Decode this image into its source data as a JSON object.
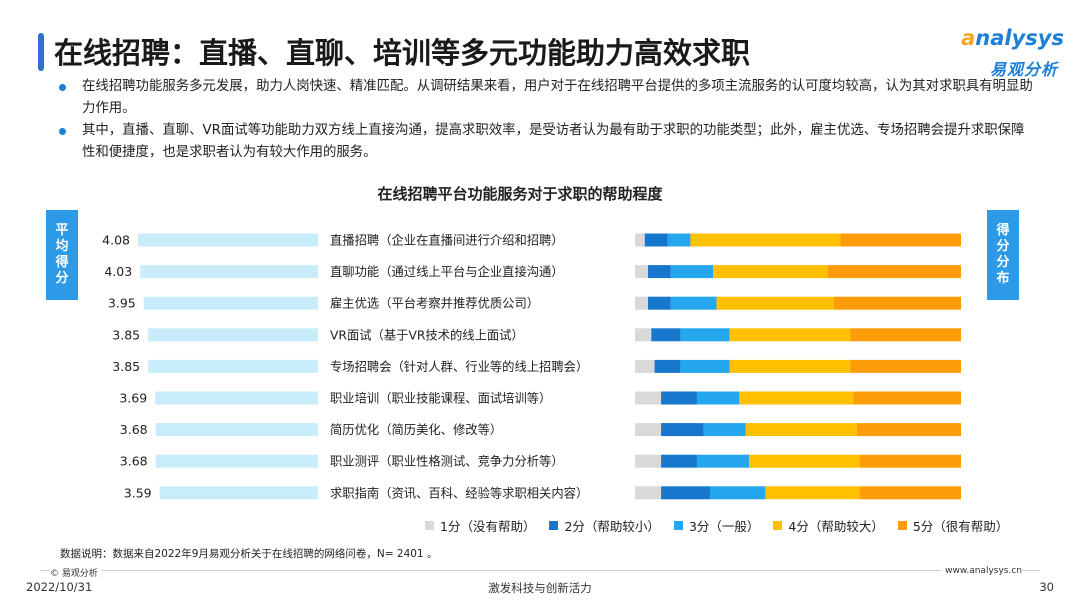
{
  "header": {
    "title": "在线招聘：直播、直聊、培训等多元功能助力高效求职",
    "logo_en_first": "a",
    "logo_en_rest": "nalysys",
    "logo_cn": "易观分析"
  },
  "bullets": [
    "在线招聘功能服务多元发展，助力人岗快速、精准匹配。从调研结果来看，用户对于在线招聘平台提供的多项主流服务的认可度均较高，认为其对求职具有明显助力作用。",
    "其中，直播、直聊、VR面试等功能助力双方线上直接沟通，提高求职效率，是受访者认为最有助于求职的功能类型；此外，雇主优选、专场招聘会提升求职保障性和便捷度，也是求职者认为有较大作用的服务。"
  ],
  "side_tags": {
    "left": [
      "平",
      "均",
      "得",
      "分"
    ],
    "right": [
      "得",
      "分",
      "分",
      "布"
    ]
  },
  "chart_data": [
    {
      "type": "bar",
      "title": "在线招聘平台功能服务对于求职的帮助程度",
      "orientation": "horizontal",
      "categories": [
        "直播招聘（企业在直播间进行介绍和招聘）",
        "直聊功能（通过线上平台与企业直接沟通）",
        "雇主优选（平台考察并推荐优质公司）",
        "VR面试（基于VR技术的线上面试）",
        "专场招聘会（针对人群、行业等的线上招聘会）",
        "职业培训（职业技能课程、面试培训等）",
        "简历优化（简历美化、修改等）",
        "职业测评（职业性格测试、竞争力分析等）",
        "求职指南（资讯、百科、经验等求职相关内容）"
      ],
      "values": [
        4.08,
        4.03,
        3.95,
        3.85,
        3.85,
        3.69,
        3.68,
        3.68,
        3.59
      ],
      "xlim": [
        0,
        5
      ]
    },
    {
      "type": "bar",
      "orientation": "horizontal",
      "stacked": true,
      "percent": true,
      "categories": [
        "直播招聘（企业在直播间进行介绍和招聘）",
        "直聊功能（通过线上平台与企业直接沟通）",
        "雇主优选（平台考察并推荐优质公司）",
        "VR面试（基于VR技术的线上面试）",
        "专场招聘会（针对人群、行业等的线上招聘会）",
        "职业培训（职业技能课程、面试培训等）",
        "简历优化（简历美化、修改等）",
        "职业测评（职业性格测试、竞争力分析等）",
        "求职指南（资讯、百科、经验等求职相关内容）"
      ],
      "series": [
        {
          "name": "1分（没有帮助）",
          "color": "#d9d9d9",
          "values": [
            3,
            4,
            4,
            5,
            6,
            8,
            8,
            8,
            8
          ]
        },
        {
          "name": "2分（帮助较小）",
          "color": "#1677cc",
          "values": [
            7,
            7,
            7,
            9,
            8,
            11,
            13,
            11,
            15
          ]
        },
        {
          "name": "3分（一般）",
          "color": "#25a7ed",
          "values": [
            7,
            13,
            14,
            15,
            15,
            13,
            13,
            16,
            17
          ]
        },
        {
          "name": "4分（帮助较大）",
          "color": "#ffc000",
          "values": [
            46,
            35,
            36,
            37,
            37,
            35,
            34,
            34,
            29
          ]
        },
        {
          "name": "5分（很有帮助）",
          "color": "#ff9c0a",
          "values": [
            37,
            41,
            39,
            34,
            34,
            33,
            32,
            31,
            31
          ]
        }
      ]
    }
  ],
  "data_note": "数据说明：数据来自2022年9月易观分析关于在线招聘的网络问卷，N= 2401 。",
  "footer": {
    "copyright": "© 易观分析",
    "date": "2022/10/31",
    "slogan": "激发科技与创新活力",
    "url": "www.analysys.cn",
    "page": "30"
  },
  "colors": {
    "accent": "#2f6fd6",
    "avg_bar": "#c9ecfb",
    "tag_bg": "#2d9ae8"
  }
}
